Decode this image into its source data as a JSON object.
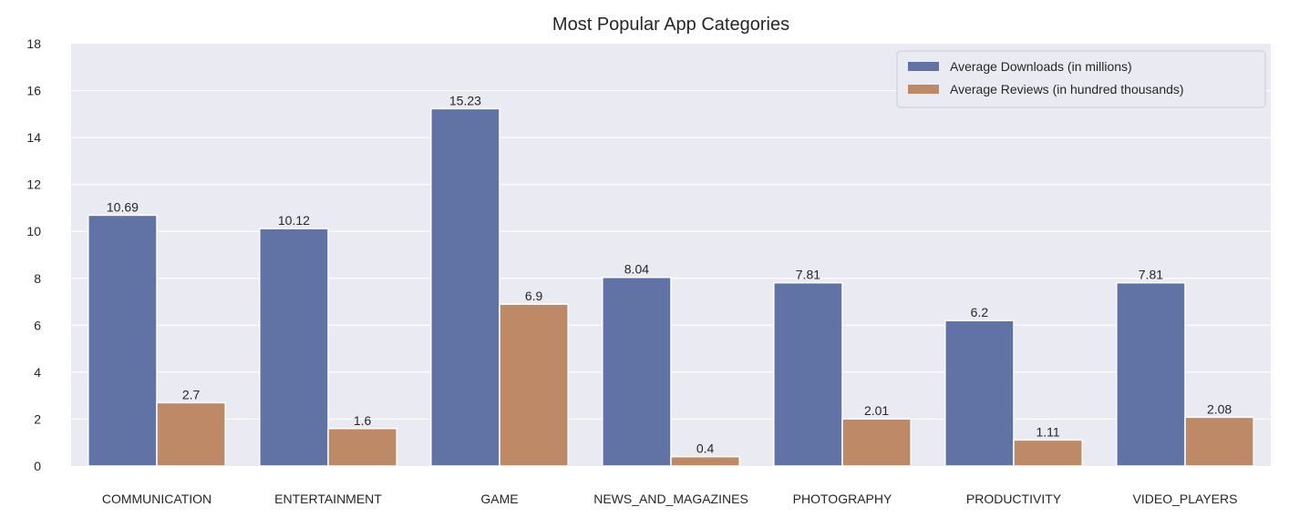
{
  "chart_data": {
    "type": "bar",
    "title": "Most Popular App Categories",
    "xlabel": "",
    "ylabel": "",
    "ylim": [
      0,
      18
    ],
    "yticks": [
      "0",
      "2",
      "4",
      "6",
      "8",
      "10",
      "12",
      "14",
      "16",
      "18"
    ],
    "grid": true,
    "legend_position": "top-right",
    "categories": [
      "COMMUNICATION",
      "ENTERTAINMENT",
      "GAME",
      "NEWS_AND_MAGAZINES",
      "PHOTOGRAPHY",
      "PRODUCTIVITY",
      "VIDEO_PLAYERS"
    ],
    "series": [
      {
        "name": "Average Downloads (in millions)",
        "color": "#6173a4",
        "values": [
          10.69,
          10.12,
          15.23,
          8.04,
          7.81,
          6.2,
          7.81
        ],
        "labels": [
          "10.69",
          "10.12",
          "15.23",
          "8.04",
          "7.81",
          "6.2",
          "7.81"
        ]
      },
      {
        "name": "Average Reviews (in hundred thousands)",
        "color": "#bd8966",
        "values": [
          2.7,
          1.6,
          6.9,
          0.4,
          2.01,
          1.11,
          2.08
        ],
        "labels": [
          "2.7",
          "1.6",
          "6.9",
          "0.4",
          "2.01",
          "1.11",
          "2.08"
        ]
      }
    ],
    "colors": {
      "plot_background": "#eaeaf2",
      "grid": "#ffffff",
      "text": "#262626"
    }
  }
}
